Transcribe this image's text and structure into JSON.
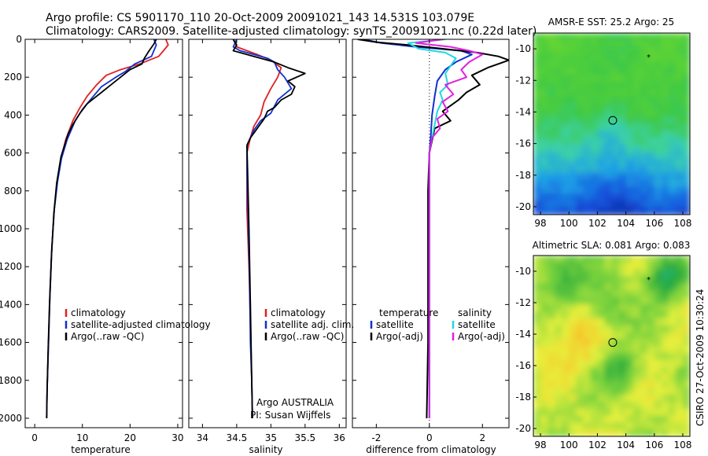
{
  "header": {
    "line1": "Argo profile: CS 5901170_110 20-Oct-2009 20091021_143 14.531S 103.079E",
    "line2": "Climatology: CARS2009. Satellite-adjusted climatology: synTS_20091021.nc (0.22d later)"
  },
  "footer": {
    "credit_line1": "Argo AUSTRALIA",
    "credit_line2": "PI: Susan Wijffels",
    "stamp": "CSIRO 27-Oct-2009 10:30:24"
  },
  "colors": {
    "climatology": "#e02020",
    "satellite": "#1030d0",
    "argo": "#000000",
    "salinity_satellite": "#20d8e0",
    "salinity_argo": "#e020e0"
  },
  "chart_data": [
    {
      "type": "line",
      "id": "temperature",
      "xlabel": "temperature",
      "ylabel": "",
      "xlim": [
        -2,
        31
      ],
      "ylim": [
        2050,
        0
      ],
      "y_inverted": true,
      "xticks": [
        "0",
        "10",
        "20",
        "30"
      ],
      "yticks": [
        "0",
        "200",
        "400",
        "600",
        "800",
        "1000",
        "1200",
        "1400",
        "1600",
        "1800",
        "2000"
      ],
      "legend": [
        "climatology",
        "satellite-adjusted climatology",
        "Argo(..raw -QC)"
      ],
      "legend_placement": "lower-right",
      "series": [
        {
          "name": "climatology",
          "color_key": "climatology",
          "points": [
            [
              27.5,
              0
            ],
            [
              28,
              30
            ],
            [
              27,
              60
            ],
            [
              26,
              90
            ],
            [
              22,
              130
            ],
            [
              18,
              160
            ],
            [
              15,
              190
            ],
            [
              13,
              240
            ],
            [
              11,
              300
            ],
            [
              9.5,
              360
            ],
            [
              8,
              430
            ],
            [
              6.5,
              530
            ],
            [
              5.5,
              630
            ],
            [
              4.7,
              750
            ],
            [
              4.1,
              900
            ],
            [
              3.6,
              1100
            ],
            [
              3.2,
              1350
            ],
            [
              2.9,
              1600
            ],
            [
              2.6,
              1850
            ],
            [
              2.5,
              2000
            ]
          ]
        },
        {
          "name": "satellite-adjusted climatology",
          "color_key": "satellite",
          "points": [
            [
              25,
              0
            ],
            [
              25.5,
              30
            ],
            [
              25,
              60
            ],
            [
              24.5,
              90
            ],
            [
              21,
              130
            ],
            [
              19,
              170
            ],
            [
              17,
              200
            ],
            [
              14,
              250
            ],
            [
              12,
              310
            ],
            [
              10,
              370
            ],
            [
              8.5,
              430
            ],
            [
              6.8,
              530
            ],
            [
              5.6,
              630
            ],
            [
              4.8,
              750
            ],
            [
              4.1,
              900
            ],
            [
              3.6,
              1100
            ],
            [
              3.2,
              1350
            ],
            [
              2.9,
              1600
            ],
            [
              2.6,
              1850
            ],
            [
              2.5,
              2000
            ]
          ]
        },
        {
          "name": "Argo(..raw -QC)",
          "color_key": "argo",
          "points": [
            [
              25.5,
              0
            ],
            [
              25,
              25
            ],
            [
              24,
              60
            ],
            [
              23,
              100
            ],
            [
              22.5,
              130
            ],
            [
              20,
              160
            ],
            [
              18,
              200
            ],
            [
              16,
              240
            ],
            [
              14,
              280
            ],
            [
              12.5,
              310
            ],
            [
              11,
              340
            ],
            [
              9.5,
              390
            ],
            [
              8,
              450
            ],
            [
              7,
              500
            ],
            [
              5.5,
              620
            ],
            [
              4.6,
              760
            ],
            [
              4,
              920
            ],
            [
              3.5,
              1150
            ],
            [
              3.1,
              1400
            ],
            [
              2.8,
              1650
            ],
            [
              2.6,
              1850
            ],
            [
              2.5,
              2000
            ]
          ]
        }
      ]
    },
    {
      "type": "line",
      "id": "salinity",
      "xlabel": "salinity",
      "ylabel": "",
      "xlim": [
        33.8,
        36.1
      ],
      "ylim": [
        2050,
        0
      ],
      "y_inverted": true,
      "xticks": [
        "34",
        "34.5",
        "35",
        "35.5",
        "36"
      ],
      "legend": [
        "climatology",
        "satellite adj. clim.",
        "Argo(..raw -QC)"
      ],
      "legend_placement": "lower-right",
      "series": [
        {
          "name": "climatology",
          "color_key": "climatology",
          "points": [
            [
              34.45,
              0
            ],
            [
              34.5,
              40
            ],
            [
              34.8,
              80
            ],
            [
              35.0,
              110
            ],
            [
              35.15,
              150
            ],
            [
              35.1,
              200
            ],
            [
              35.0,
              260
            ],
            [
              34.9,
              330
            ],
            [
              34.85,
              400
            ],
            [
              34.75,
              460
            ],
            [
              34.7,
              520
            ],
            [
              34.65,
              600
            ],
            [
              34.65,
              900
            ],
            [
              34.68,
              1200
            ],
            [
              34.7,
              1500
            ],
            [
              34.72,
              1800
            ],
            [
              34.73,
              2000
            ]
          ]
        },
        {
          "name": "satellite adj. clim.",
          "color_key": "satellite",
          "points": [
            [
              34.5,
              0
            ],
            [
              34.45,
              40
            ],
            [
              34.55,
              60
            ],
            [
              34.75,
              80
            ],
            [
              34.95,
              100
            ],
            [
              35.05,
              120
            ],
            [
              35.1,
              160
            ],
            [
              35.2,
              200
            ],
            [
              35.3,
              260
            ],
            [
              35.1,
              320
            ],
            [
              35.0,
              390
            ],
            [
              34.85,
              430
            ],
            [
              34.75,
              480
            ],
            [
              34.7,
              520
            ],
            [
              34.65,
              560
            ],
            [
              34.65,
              700
            ],
            [
              34.67,
              1000
            ],
            [
              34.69,
              1300
            ],
            [
              34.7,
              1600
            ],
            [
              34.72,
              1800
            ],
            [
              34.73,
              2000
            ]
          ]
        },
        {
          "name": "Argo(..raw -QC)",
          "color_key": "argo",
          "points": [
            [
              34.45,
              0
            ],
            [
              34.5,
              30
            ],
            [
              34.45,
              60
            ],
            [
              34.75,
              90
            ],
            [
              35.05,
              120
            ],
            [
              35.25,
              150
            ],
            [
              35.5,
              180
            ],
            [
              35.25,
              220
            ],
            [
              35.35,
              250
            ],
            [
              35.3,
              290
            ],
            [
              35.15,
              320
            ],
            [
              35.05,
              360
            ],
            [
              34.95,
              380
            ],
            [
              34.9,
              420
            ],
            [
              34.8,
              470
            ],
            [
              34.7,
              520
            ],
            [
              34.65,
              560
            ],
            [
              34.66,
              700
            ],
            [
              34.68,
              1000
            ],
            [
              34.7,
              1400
            ],
            [
              34.72,
              1800
            ],
            [
              34.73,
              2000
            ]
          ]
        }
      ]
    },
    {
      "type": "line",
      "id": "difference",
      "xlabel": "difference from climatology",
      "ylabel": "",
      "xlim": [
        -2.9,
        3.0
      ],
      "ylim": [
        2050,
        0
      ],
      "y_inverted": true,
      "xticks": [
        "-2",
        "0",
        "2"
      ],
      "zero_reference": "dotted",
      "legend_groups": [
        {
          "heading": "temperature",
          "entries": [
            "satellite",
            "Argo(-adj)"
          ]
        },
        {
          "heading": "salinity",
          "entries": [
            "satellite",
            "Argo(-adj)"
          ]
        }
      ],
      "legend_placement": "lower-right",
      "series": [
        {
          "name": "temperature satellite",
          "color_key": "satellite",
          "points": [
            [
              -2.5,
              0
            ],
            [
              -1.8,
              20
            ],
            [
              -0.5,
              40
            ],
            [
              1.2,
              60
            ],
            [
              1.6,
              80
            ],
            [
              1.0,
              120
            ],
            [
              0.6,
              160
            ],
            [
              0.3,
              220
            ],
            [
              0.2,
              300
            ],
            [
              0.1,
              400
            ],
            [
              0.05,
              520
            ],
            [
              0.0,
              600
            ],
            [
              0.0,
              1000
            ],
            [
              0.0,
              1500
            ],
            [
              0.0,
              2000
            ]
          ]
        },
        {
          "name": "temperature Argo(-adj)",
          "color_key": "argo",
          "points": [
            [
              -2.7,
              0
            ],
            [
              -2,
              15
            ],
            [
              -0.8,
              30
            ],
            [
              0.5,
              50
            ],
            [
              1.8,
              70
            ],
            [
              2.6,
              90
            ],
            [
              3.0,
              110
            ],
            [
              2.2,
              150
            ],
            [
              1.6,
              190
            ],
            [
              1.9,
              240
            ],
            [
              1.4,
              280
            ],
            [
              1.1,
              320
            ],
            [
              0.5,
              380
            ],
            [
              0.8,
              430
            ],
            [
              0.2,
              470
            ],
            [
              0.0,
              600
            ],
            [
              -0.05,
              800
            ],
            [
              -0.05,
              1200
            ],
            [
              -0.05,
              1600
            ],
            [
              -0.1,
              2000
            ]
          ]
        },
        {
          "name": "salinity satellite",
          "color_key": "salinity_satellite",
          "points": [
            [
              0.6,
              0
            ],
            [
              -0.8,
              20
            ],
            [
              -0.4,
              50
            ],
            [
              0.6,
              70
            ],
            [
              1.0,
              100
            ],
            [
              0.8,
              140
            ],
            [
              0.6,
              180
            ],
            [
              0.7,
              240
            ],
            [
              0.4,
              280
            ],
            [
              0.5,
              320
            ],
            [
              0.3,
              380
            ],
            [
              0.2,
              450
            ],
            [
              0.1,
              520
            ],
            [
              0.0,
              600
            ],
            [
              0.0,
              1000
            ],
            [
              0.0,
              1500
            ],
            [
              0.0,
              2000
            ]
          ]
        },
        {
          "name": "salinity Argo(-adj)",
          "color_key": "salinity_argo",
          "points": [
            [
              0.5,
              0
            ],
            [
              -0.5,
              20
            ],
            [
              0.8,
              40
            ],
            [
              1.5,
              60
            ],
            [
              2.0,
              80
            ],
            [
              1.5,
              120
            ],
            [
              1.2,
              160
            ],
            [
              1.4,
              200
            ],
            [
              0.6,
              240
            ],
            [
              0.9,
              290
            ],
            [
              0.5,
              330
            ],
            [
              0.7,
              380
            ],
            [
              0.3,
              420
            ],
            [
              0.4,
              470
            ],
            [
              0.1,
              520
            ],
            [
              0.0,
              600
            ],
            [
              0.0,
              1000
            ],
            [
              0.0,
              1500
            ],
            [
              0.0,
              2000
            ]
          ]
        }
      ]
    },
    {
      "type": "heatmap",
      "id": "sst-map",
      "title": "AMSR-E SST: 25.2 Argo: 25",
      "xlim": [
        97.5,
        108.5
      ],
      "ylim": [
        -20.5,
        -9
      ],
      "xticks": [
        "98",
        "100",
        "102",
        "104",
        "106",
        "108"
      ],
      "yticks": [
        "-10",
        "-12",
        "-14",
        "-16",
        "-18",
        "-20"
      ],
      "float_position": [
        103.08,
        -14.53
      ],
      "marker_star": [
        105.6,
        -10.5
      ]
    },
    {
      "type": "heatmap",
      "id": "sla-map",
      "title": "Altimetric SLA: 0.081 Argo: 0.083",
      "xlim": [
        97.5,
        108.5
      ],
      "ylim": [
        -20.5,
        -9
      ],
      "xticks": [
        "98",
        "100",
        "102",
        "104",
        "106",
        "108"
      ],
      "yticks": [
        "-10",
        "-12",
        "-14",
        "-16",
        "-18",
        "-20"
      ],
      "float_position": [
        103.08,
        -14.53
      ],
      "marker_star": [
        105.6,
        -10.5
      ]
    }
  ]
}
